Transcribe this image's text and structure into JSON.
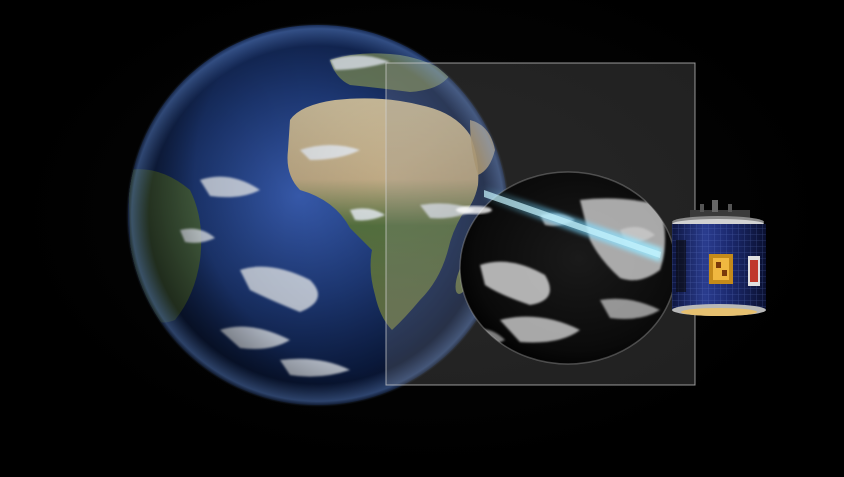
{
  "scene": {
    "subjects": {
      "earth": "earth",
      "scan_frame": "scan-frame",
      "captured_earth_image": "captured-earth-image",
      "scan_beam": "scan-beam",
      "satellite": "satellite"
    },
    "colors": {
      "background": "#000000",
      "ocean_deep": "#0b1f4a",
      "ocean_light": "#2f4f9a",
      "land_green": "#4f6b3a",
      "land_sand": "#c9b48a",
      "cloud": "#e8eef6",
      "frame_fill": "#8a8a8a",
      "beam": "#6fd6ff",
      "satellite_body": "#1b2a6b",
      "satellite_gold": "#d9a22a"
    }
  }
}
